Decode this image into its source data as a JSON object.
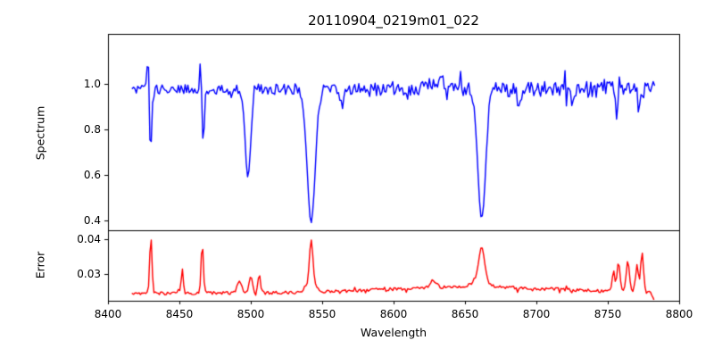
{
  "figure": {
    "background_color": "#ffffff",
    "frame_color": "#000000"
  },
  "chart_data": [
    {
      "type": "line",
      "title": "20110904_0219m01_022",
      "ylabel": "Spectrum",
      "color": "#0000ff",
      "grid": false,
      "legend": null,
      "xlim": [
        8400,
        8800
      ],
      "ylim": [
        0.357,
        1.2196
      ],
      "yticks": [
        {
          "value": 0.4,
          "label": "0.4"
        },
        {
          "value": 0.6,
          "label": "0.6"
        },
        {
          "value": 0.8,
          "label": "0.8"
        },
        {
          "value": 1.0,
          "label": "1.0"
        }
      ],
      "x_data_range": [
        8417,
        8783
      ],
      "sample_step": 0.95,
      "baseline": 0.976,
      "noise_amplitude_range": [
        0.019,
        0.038
      ],
      "features": [
        {
          "center": 8428.2,
          "amplitude": 0.205,
          "width": 0.7
        },
        {
          "center": 8429.7,
          "amplitude": -0.295,
          "width": 0.9
        },
        {
          "center": 8465.0,
          "amplitude": 0.15,
          "width": 0.7
        },
        {
          "center": 8466.6,
          "amplitude": -0.245,
          "width": 0.9
        },
        {
          "center": 8498.0,
          "amplitude": -0.385,
          "width": 1.9
        },
        {
          "center": 8542.3,
          "amplitude": -0.585,
          "width": 2.8
        },
        {
          "center": 8661.7,
          "amplitude": -0.565,
          "width": 2.8
        },
        {
          "center": 8632.0,
          "amplitude": 0.035,
          "width": 7.0
        },
        {
          "center": 8564.0,
          "amplitude": -0.07,
          "width": 1.3
        },
        {
          "center": 8688.0,
          "amplitude": -0.08,
          "width": 1.3
        },
        {
          "center": 8726.0,
          "amplitude": -0.075,
          "width": 1.2
        },
        {
          "center": 8756.0,
          "amplitude": -0.085,
          "width": 1.0
        },
        {
          "center": 8772.0,
          "amplitude": -0.09,
          "width": 1.0
        }
      ]
    },
    {
      "type": "line",
      "ylabel": "Error",
      "xlabel": "Wavelength",
      "color": "#ff0000",
      "grid": false,
      "legend": null,
      "xlim": [
        8400,
        8800
      ],
      "ylim": [
        0.02231,
        0.04256
      ],
      "yticks": [
        {
          "value": 0.03,
          "label": "0.03"
        },
        {
          "value": 0.04,
          "label": "0.04"
        }
      ],
      "xticks": [
        {
          "value": 8400,
          "label": "8400"
        },
        {
          "value": 8450,
          "label": "8450"
        },
        {
          "value": 8500,
          "label": "8500"
        },
        {
          "value": 8550,
          "label": "8550"
        },
        {
          "value": 8600,
          "label": "8600"
        },
        {
          "value": 8650,
          "label": "8650"
        },
        {
          "value": 8700,
          "label": "8700"
        },
        {
          "value": 8750,
          "label": "8750"
        },
        {
          "value": 8800,
          "label": "8800"
        }
      ],
      "x_data_range": [
        8417,
        8783
      ],
      "sample_step": 0.95,
      "baseline": 0.0245,
      "baseline_bump": {
        "center": 8655,
        "amplitude": 0.0018,
        "width": 60
      },
      "noise_amplitude": 0.00045,
      "features": [
        {
          "center": 8430.0,
          "amplitude": 0.0163,
          "width": 0.8
        },
        {
          "center": 8452.0,
          "amplitude": 0.007,
          "width": 0.7
        },
        {
          "center": 8466.0,
          "amplitude": 0.0143,
          "width": 0.8
        },
        {
          "center": 8492.0,
          "amplitude": 0.0036,
          "width": 1.5
        },
        {
          "center": 8500.0,
          "amplitude": 0.0046,
          "width": 1.2
        },
        {
          "center": 8506.0,
          "amplitude": 0.0052,
          "width": 0.9
        },
        {
          "center": 8542.3,
          "amplitude": 0.0125,
          "width": 1.2
        },
        {
          "center": 8542.0,
          "amplitude": 0.0025,
          "width": 3.5
        },
        {
          "center": 8628.0,
          "amplitude": 0.0022,
          "width": 2.0
        },
        {
          "center": 8661.7,
          "amplitude": 0.0095,
          "width": 2.0
        },
        {
          "center": 8660.0,
          "amplitude": 0.002,
          "width": 5.0
        },
        {
          "center": 8754.0,
          "amplitude": 0.006,
          "width": 0.9
        },
        {
          "center": 8757.5,
          "amplitude": 0.0085,
          "width": 1.0
        },
        {
          "center": 8764.0,
          "amplitude": 0.009,
          "width": 1.1
        },
        {
          "center": 8770.5,
          "amplitude": 0.008,
          "width": 0.9
        },
        {
          "center": 8774.0,
          "amplitude": 0.0115,
          "width": 1.0
        },
        {
          "center": 8783.0,
          "amplitude": -0.003,
          "width": 1.5
        }
      ]
    }
  ]
}
